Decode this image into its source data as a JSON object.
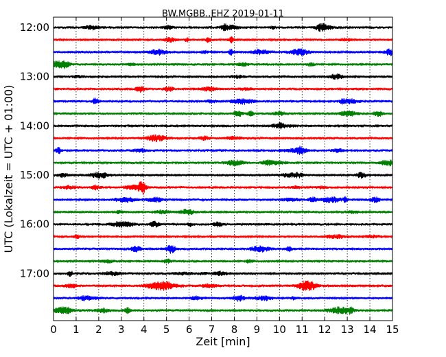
{
  "chart_data": {
    "type": "line",
    "title": "BW.MGBB..EHZ 2019-01-11",
    "xlabel": "Zeit  [min]",
    "ylabel": "UTC (Lokalzeit = UTC + 01:00)",
    "xlim": [
      0,
      15
    ],
    "x_ticks": [
      "0",
      "1",
      "2",
      "3",
      "4",
      "5",
      "6",
      "7",
      "8",
      "9",
      "10",
      "11",
      "12",
      "13",
      "14",
      "15"
    ],
    "y_ticks": [
      "12:00",
      "13:00",
      "14:00",
      "15:00",
      "16:00",
      "17:00"
    ],
    "grid": "vertical dotted lines at each minute",
    "trace_interval_minutes": 15,
    "trace_colors": [
      "#000000",
      "#ff0000",
      "#0000ff",
      "#008000"
    ],
    "series": [
      {
        "start": "12:00",
        "color": "#000000"
      },
      {
        "start": "12:15",
        "color": "#ff0000"
      },
      {
        "start": "12:30",
        "color": "#0000ff"
      },
      {
        "start": "12:45",
        "color": "#008000"
      },
      {
        "start": "13:00",
        "color": "#000000"
      },
      {
        "start": "13:15",
        "color": "#ff0000"
      },
      {
        "start": "13:30",
        "color": "#0000ff"
      },
      {
        "start": "13:45",
        "color": "#008000"
      },
      {
        "start": "14:00",
        "color": "#000000"
      },
      {
        "start": "14:15",
        "color": "#ff0000"
      },
      {
        "start": "14:30",
        "color": "#0000ff"
      },
      {
        "start": "14:45",
        "color": "#008000"
      },
      {
        "start": "15:00",
        "color": "#000000"
      },
      {
        "start": "15:15",
        "color": "#ff0000"
      },
      {
        "start": "15:30",
        "color": "#0000ff"
      },
      {
        "start": "15:45",
        "color": "#008000"
      },
      {
        "start": "16:00",
        "color": "#000000"
      },
      {
        "start": "16:15",
        "color": "#ff0000"
      },
      {
        "start": "16:30",
        "color": "#0000ff"
      },
      {
        "start": "16:45",
        "color": "#008000"
      },
      {
        "start": "17:00",
        "color": "#000000"
      },
      {
        "start": "17:15",
        "color": "#ff0000"
      },
      {
        "start": "17:30",
        "color": "#0000ff"
      },
      {
        "start": "17:45",
        "color": "#008000"
      }
    ]
  }
}
